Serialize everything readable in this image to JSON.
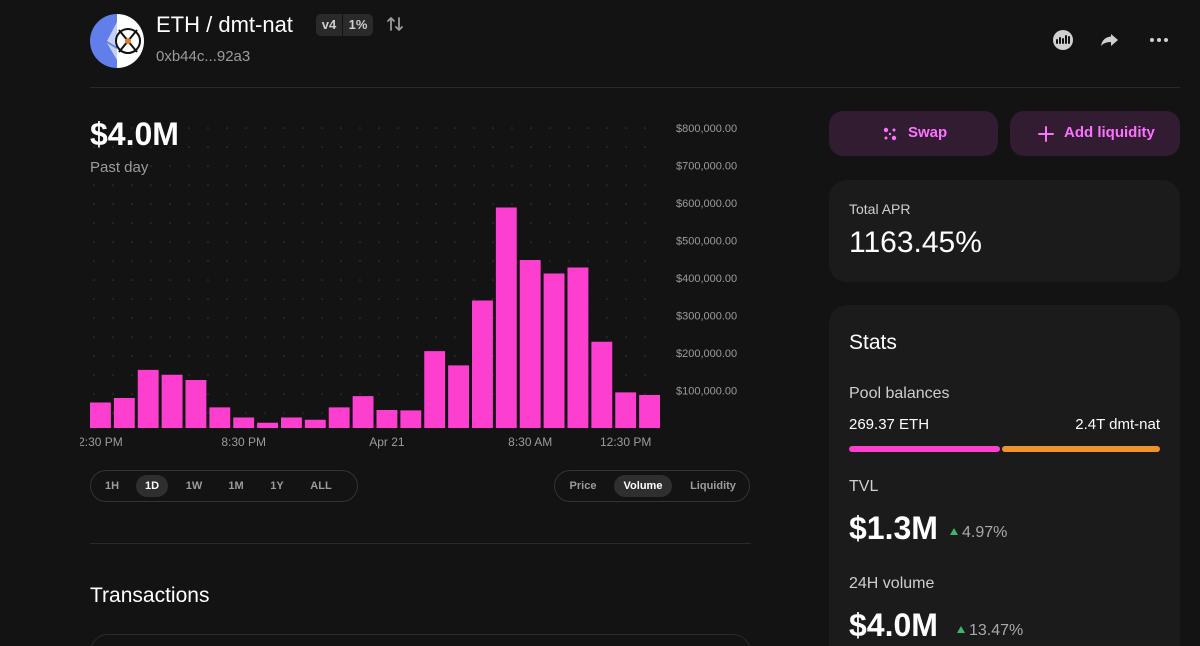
{
  "header": {
    "pair": "ETH / dmt-nat",
    "version_badge": "v4",
    "fee_badge": "1%",
    "address": "0xb44c...92a3",
    "icons": [
      "pair-logo-icon",
      "swap-direction-icon",
      "explorer-icon",
      "share-icon",
      "more-icon"
    ]
  },
  "summary": {
    "value": "$4.0M",
    "period": "Past day"
  },
  "chart_data": {
    "type": "bar",
    "series": [
      {
        "values": [
          68000,
          80000,
          155000,
          142000,
          128000,
          55000,
          28000,
          14000,
          28000,
          22000,
          55000,
          85000,
          48000,
          47000,
          205000,
          167000,
          340000,
          588000,
          448000,
          412000,
          428000,
          230000,
          95000,
          88000
        ]
      }
    ],
    "x_tick_labels": [
      "2:30 PM",
      "8:30 PM",
      "Apr 21",
      "8:30 AM",
      "12:30 PM"
    ],
    "x_tick_indices": [
      0,
      6,
      12,
      18,
      22
    ],
    "y_tick_labels": [
      "$100,000.00",
      "$200,000.00",
      "$300,000.00",
      "$400,000.00",
      "$500,000.00",
      "$600,000.00",
      "$700,000.00",
      "$800,000.00"
    ],
    "y_tick_values": [
      100000,
      200000,
      300000,
      400000,
      500000,
      600000,
      700000,
      800000
    ],
    "ylim": [
      0,
      800000
    ],
    "bar_color": "#fc3fcf",
    "grid": "dotted"
  },
  "controls": {
    "ranges": [
      "1H",
      "1D",
      "1W",
      "1M",
      "1Y",
      "ALL"
    ],
    "active_range": "1D",
    "types": [
      "Price",
      "Volume",
      "Liquidity"
    ],
    "active_type": "Volume"
  },
  "transactions": {
    "title": "Transactions"
  },
  "actions": {
    "swap": "Swap",
    "add_liquidity": "Add liquidity"
  },
  "apr": {
    "label": "Total APR",
    "value": "1163.45%"
  },
  "stats": {
    "title": "Stats",
    "pool_balances_label": "Pool balances",
    "balance_left": "269.37 ETH",
    "balance_right": "2.4T dmt-nat",
    "balance_left_color": "#fc3fcf",
    "balance_right_color": "#f0932b",
    "balance_left_share": 0.49,
    "tvl_label": "TVL",
    "tvl_value": "$1.3M",
    "tvl_change": "4.97%",
    "volume_label": "24H volume",
    "volume_value": "$4.0M",
    "volume_change": "13.47%"
  },
  "colors": {
    "accent": "#fc72ff",
    "accent_bg": "#311c31",
    "up": "#40b66b",
    "background": "#131313",
    "card": "#1b1b1b"
  }
}
